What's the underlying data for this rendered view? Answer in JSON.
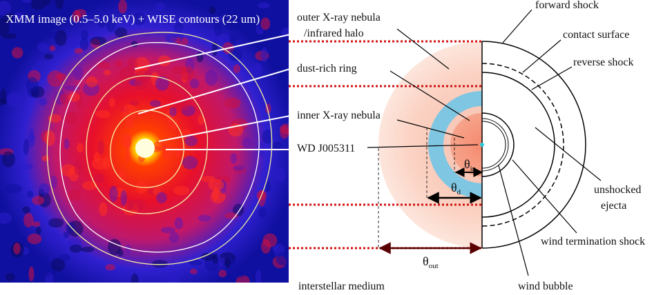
{
  "image_panel": {
    "caption": "XMM image (0.5–5.0 keV) + WISE contours (22 um)"
  },
  "labels": {
    "outer_nebula": [
      "outer X-ray nebula",
      "/infrared halo"
    ],
    "dust_ring": "dust-rich ring",
    "inner_nebula": "inner X-ray nebula",
    "white_dwarf": "WD J005311",
    "ism": "interstellar medium"
  },
  "angles": {
    "inner": {
      "symbol": "θ",
      "subscript": "in"
    },
    "dust": {
      "symbol": "θ",
      "subscript": "d"
    },
    "outer": {
      "symbol": "θ",
      "subscript": "out"
    }
  },
  "structure": {
    "forward_shock": "forward shock",
    "contact_surface": "contact surface",
    "reverse_shock": "reverse shock",
    "unshocked_ejecta": [
      "unshocked",
      "ejecta"
    ],
    "wind_termination_shock": "wind termination shock",
    "wind_bubble": "wind bubble"
  }
}
